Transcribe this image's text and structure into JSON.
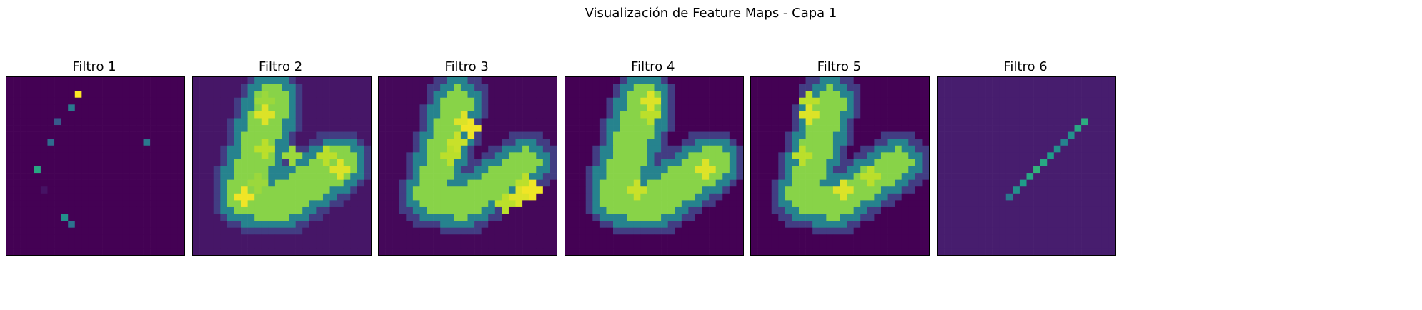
{
  "chart_data": {
    "type": "heatmap",
    "suptitle": "Visualización de Feature Maps - Capa 1",
    "grid": false,
    "axes_visible": false,
    "colormap": "viridis",
    "resolution": [
      26,
      26
    ],
    "panels": [
      {
        "title": "Filtro 1",
        "background": 0.0,
        "blobs": [],
        "shapes": [],
        "pixels": [
          [
            10,
            2,
            1.0
          ],
          [
            9,
            4,
            0.4
          ],
          [
            7,
            6,
            0.28
          ],
          [
            6,
            9,
            0.35
          ],
          [
            20,
            9,
            0.4
          ],
          [
            4,
            13,
            0.6
          ],
          [
            8,
            20,
            0.5
          ],
          [
            9,
            21,
            0.38
          ],
          [
            5,
            16,
            0.05
          ]
        ]
      },
      {
        "title": "Filtro 2",
        "background": 0.06,
        "shapes": [
          "v"
        ],
        "blobs": [
          [
            10,
            5,
            0.95
          ],
          [
            10,
            3,
            0.85
          ],
          [
            7,
            17,
            0.98
          ],
          [
            10,
            10,
            0.9
          ],
          [
            14,
            11,
            0.85
          ],
          [
            21,
            13,
            0.95
          ],
          [
            19,
            11,
            0.9
          ],
          [
            9,
            15,
            0.85
          ]
        ],
        "pixels": []
      },
      {
        "title": "Filtro 3",
        "background": 0.02,
        "shapes": [
          "v-narrow"
        ],
        "blobs": [
          [
            13,
            7,
            0.98
          ],
          [
            12,
            6,
            0.95
          ],
          [
            11,
            9,
            0.92
          ],
          [
            10,
            11,
            0.9
          ],
          [
            22,
            16,
            0.98
          ],
          [
            20,
            17,
            0.95
          ],
          [
            18,
            18,
            0.9
          ],
          [
            21,
            15,
            0.9
          ]
        ],
        "pixels": []
      },
      {
        "title": "Filtro 4",
        "background": 0.0,
        "shapes": [
          "v"
        ],
        "blobs": [
          [
            12,
            3,
            0.95
          ],
          [
            12,
            5,
            0.9
          ],
          [
            10,
            16,
            0.92
          ],
          [
            20,
            13,
            0.95
          ]
        ],
        "pixels": []
      },
      {
        "title": "Filtro 5",
        "background": 0.0,
        "shapes": [
          "v-narrow"
        ],
        "blobs": [
          [
            8,
            3,
            0.9
          ],
          [
            8,
            5,
            0.95
          ],
          [
            7,
            11,
            0.9
          ],
          [
            13,
            16,
            0.95
          ],
          [
            17,
            14,
            0.9
          ]
        ],
        "pixels": []
      },
      {
        "title": "Filtro 6",
        "background": 0.08,
        "shapes": [
          "edge"
        ],
        "blobs": [],
        "pixels": [
          [
            10,
            17,
            0.4
          ],
          [
            11,
            16,
            0.5
          ],
          [
            12,
            15,
            0.55
          ],
          [
            13,
            14,
            0.6
          ],
          [
            14,
            13,
            0.65
          ],
          [
            15,
            12,
            0.6
          ],
          [
            16,
            11,
            0.55
          ],
          [
            17,
            10,
            0.5
          ],
          [
            18,
            9,
            0.45
          ],
          [
            19,
            8,
            0.5
          ],
          [
            20,
            7,
            0.6
          ],
          [
            21,
            6,
            0.62
          ]
        ]
      }
    ]
  }
}
